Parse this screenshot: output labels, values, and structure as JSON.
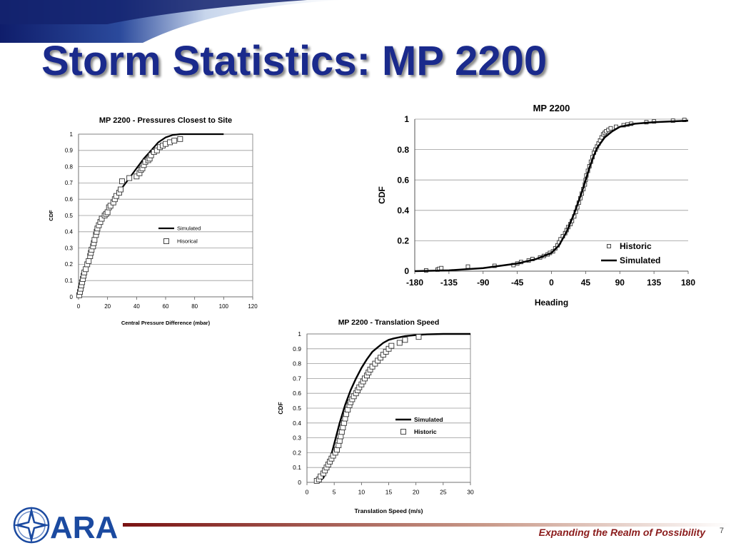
{
  "slide": {
    "title": "Storm Statistics: MP 2200",
    "tagline": "Expanding the Realm of Possibility",
    "page_number": "7",
    "logo_text": "ARA",
    "colors": {
      "title": "#1a2a8c",
      "tagline": "#8b1c1c",
      "band": "#1b2a7a",
      "line": "#000000"
    }
  },
  "chart_data": [
    {
      "type": "line",
      "title": "MP 2200 - Pressures Closest to Site",
      "xlabel": "Central Pressure Difference (mbar)",
      "ylabel": "CDF",
      "xlim": [
        0,
        120
      ],
      "ylim": [
        0,
        1
      ],
      "xticks": [
        "0",
        "20",
        "40",
        "60",
        "80",
        "100",
        "120"
      ],
      "yticks": [
        "0",
        "0.1",
        "0.2",
        "0.3",
        "0.4",
        "0.5",
        "0.6",
        "0.7",
        "0.8",
        "0.9",
        "1"
      ],
      "grid": true,
      "legend_position": "center-right",
      "series": [
        {
          "name": "Simulated",
          "style": "line",
          "x": [
            0,
            2,
            4,
            6,
            8,
            10,
            12,
            15,
            20,
            25,
            30,
            35,
            40,
            45,
            50,
            55,
            60,
            65,
            70,
            80,
            100
          ],
          "y": [
            0,
            0.05,
            0.12,
            0.19,
            0.26,
            0.32,
            0.38,
            0.45,
            0.54,
            0.61,
            0.67,
            0.73,
            0.79,
            0.85,
            0.9,
            0.95,
            0.98,
            0.995,
            1.0,
            1.0,
            1.0
          ]
        },
        {
          "name": "Hisorical",
          "style": "markers",
          "x": [
            0.5,
            1,
            1.5,
            2,
            2.5,
            3,
            3.5,
            4,
            5,
            6,
            7,
            8,
            8.5,
            9,
            10,
            10.5,
            11,
            12,
            12.5,
            13,
            14,
            15,
            16,
            18,
            19,
            20,
            21,
            22,
            24,
            25,
            26,
            28,
            29,
            30,
            35,
            40,
            42,
            43,
            44,
            45,
            46,
            48,
            49,
            50,
            52,
            54,
            56,
            58,
            60,
            63,
            66,
            70
          ],
          "y": [
            0.01,
            0.03,
            0.05,
            0.07,
            0.09,
            0.11,
            0.13,
            0.15,
            0.17,
            0.2,
            0.22,
            0.25,
            0.27,
            0.29,
            0.31,
            0.33,
            0.35,
            0.38,
            0.4,
            0.42,
            0.44,
            0.46,
            0.48,
            0.5,
            0.51,
            0.52,
            0.55,
            0.56,
            0.58,
            0.6,
            0.62,
            0.64,
            0.66,
            0.71,
            0.73,
            0.74,
            0.76,
            0.78,
            0.79,
            0.81,
            0.83,
            0.84,
            0.85,
            0.87,
            0.89,
            0.9,
            0.92,
            0.93,
            0.94,
            0.95,
            0.96,
            0.97
          ]
        }
      ]
    },
    {
      "type": "line",
      "title": "MP 2200",
      "xlabel": "Heading",
      "ylabel": "CDF",
      "xlim": [
        -180,
        180
      ],
      "ylim": [
        0,
        1
      ],
      "xticks": [
        "-180",
        "-135",
        "-90",
        "-45",
        "0",
        "45",
        "90",
        "135",
        "180"
      ],
      "yticks": [
        "0",
        "0.2",
        "0.4",
        "0.6",
        "0.8",
        "1"
      ],
      "grid": true,
      "legend_position": "bottom-right",
      "series": [
        {
          "name": "Historic",
          "style": "markers",
          "x": [
            -165,
            -150,
            -148,
            -145,
            -110,
            -75,
            -50,
            -45,
            -40,
            -30,
            -25,
            -15,
            -10,
            -5,
            -2,
            2,
            5,
            8,
            10,
            12,
            15,
            18,
            20,
            22,
            25,
            27,
            30,
            32,
            34,
            36,
            38,
            40,
            42,
            44,
            45,
            46,
            48,
            50,
            52,
            54,
            56,
            58,
            60,
            62,
            64,
            66,
            68,
            70,
            72,
            75,
            78,
            85,
            95,
            100,
            105,
            125,
            135,
            160,
            175
          ],
          "y": [
            0.005,
            0.01,
            0.015,
            0.02,
            0.03,
            0.035,
            0.04,
            0.05,
            0.06,
            0.07,
            0.08,
            0.09,
            0.1,
            0.11,
            0.12,
            0.13,
            0.15,
            0.17,
            0.19,
            0.21,
            0.23,
            0.25,
            0.27,
            0.29,
            0.31,
            0.33,
            0.36,
            0.39,
            0.42,
            0.45,
            0.48,
            0.51,
            0.54,
            0.57,
            0.6,
            0.63,
            0.66,
            0.69,
            0.72,
            0.75,
            0.78,
            0.8,
            0.82,
            0.84,
            0.86,
            0.88,
            0.9,
            0.91,
            0.92,
            0.93,
            0.94,
            0.95,
            0.96,
            0.965,
            0.97,
            0.98,
            0.985,
            0.99,
            0.995
          ]
        },
        {
          "name": "Simulated",
          "style": "line",
          "x": [
            -180,
            -135,
            -90,
            -45,
            -20,
            0,
            10,
            20,
            30,
            40,
            45,
            50,
            55,
            60,
            70,
            80,
            90,
            110,
            135,
            180
          ],
          "y": [
            0,
            0.005,
            0.02,
            0.05,
            0.08,
            0.12,
            0.17,
            0.26,
            0.38,
            0.52,
            0.6,
            0.68,
            0.75,
            0.81,
            0.88,
            0.92,
            0.95,
            0.97,
            0.98,
            0.99
          ]
        }
      ]
    },
    {
      "type": "line",
      "title": "MP 2200 - Translation Speed",
      "xlabel": "Translation Speed (m/s)",
      "ylabel": "CDF",
      "xlim": [
        0,
        30
      ],
      "ylim": [
        0,
        1
      ],
      "xticks": [
        "0",
        "5",
        "10",
        "15",
        "20",
        "25",
        "30"
      ],
      "yticks": [
        "0",
        "0.1",
        "0.2",
        "0.3",
        "0.4",
        "0.5",
        "0.6",
        "0.7",
        "0.8",
        "0.9",
        "1"
      ],
      "grid": true,
      "legend_position": "center-right",
      "series": [
        {
          "name": "Simulated",
          "style": "line",
          "x": [
            2,
            3,
            4,
            5,
            6,
            7,
            8,
            9,
            10,
            11,
            12,
            13,
            14,
            15,
            16,
            18,
            20,
            22,
            25,
            30
          ],
          "y": [
            0,
            0.03,
            0.12,
            0.26,
            0.4,
            0.52,
            0.62,
            0.7,
            0.77,
            0.83,
            0.88,
            0.91,
            0.94,
            0.96,
            0.97,
            0.985,
            0.993,
            0.997,
            1.0,
            1.0
          ]
        },
        {
          "name": "Historic",
          "style": "markers",
          "x": [
            1.8,
            2.2,
            2.5,
            3,
            3.3,
            3.6,
            3.9,
            4.2,
            4.5,
            4.8,
            5.2,
            5.5,
            5.8,
            6,
            6.2,
            6.4,
            6.6,
            6.8,
            7,
            7.2,
            7.5,
            7.8,
            8,
            8.3,
            8.6,
            9,
            9.3,
            9.6,
            10,
            10.3,
            10.6,
            11,
            11.3,
            11.6,
            12,
            12.5,
            13,
            13.5,
            14,
            14.5,
            15,
            15.5,
            17,
            18,
            20.5
          ],
          "y": [
            0.01,
            0.02,
            0.04,
            0.06,
            0.08,
            0.1,
            0.12,
            0.14,
            0.16,
            0.18,
            0.2,
            0.22,
            0.25,
            0.28,
            0.31,
            0.34,
            0.37,
            0.4,
            0.43,
            0.46,
            0.49,
            0.52,
            0.54,
            0.56,
            0.58,
            0.6,
            0.62,
            0.64,
            0.66,
            0.68,
            0.7,
            0.72,
            0.74,
            0.76,
            0.78,
            0.8,
            0.82,
            0.84,
            0.86,
            0.88,
            0.9,
            0.92,
            0.94,
            0.96,
            0.98
          ]
        }
      ]
    }
  ]
}
